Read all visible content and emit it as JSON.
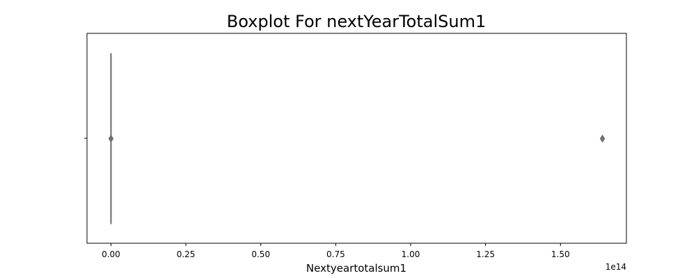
{
  "chart_data": {
    "type": "box",
    "title": "Boxplot For nextYearTotalSum1",
    "xlabel": "Nextyeartotalsum1",
    "ylabel": "",
    "x_offset_label": "1e14",
    "x_scale_factor": 100000000000000.0,
    "xlim": [
      -0.08,
      1.72
    ],
    "xticks": [
      0.0,
      0.25,
      0.5,
      0.75,
      1.0,
      1.25,
      1.5
    ],
    "xtick_labels": [
      "0.00",
      "0.25",
      "0.50",
      "0.75",
      "1.00",
      "1.25",
      "1.50"
    ],
    "orientation": "horizontal",
    "grid": false,
    "series": [
      {
        "min": 0.0,
        "q1": 0.0,
        "median": 0.0,
        "q3": 0.0,
        "max": 0.0,
        "outliers": [
          0.0,
          1.64
        ]
      }
    ],
    "colors": {
      "box": "#6f6f6f",
      "outlier": "#6f6f6f",
      "axes": "#000000"
    }
  }
}
